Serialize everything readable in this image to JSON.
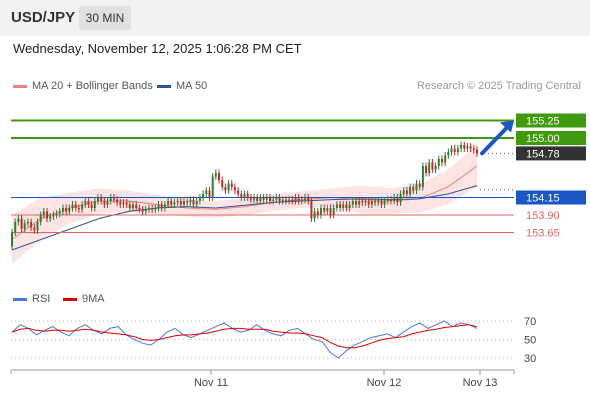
{
  "header": {
    "symbol": "USD/JPY",
    "timeframe": "30 MIN",
    "datetime": "Wednesday, November 12, 2025 1:06:28 PM CET",
    "copyright": "Research © 2025 Trading Central"
  },
  "legend": {
    "price": [
      {
        "label": "MA 20 + Bollinger Bands",
        "color": "#f08080"
      },
      {
        "label": "MA 50",
        "color": "#2f5597"
      }
    ],
    "rsi": [
      {
        "label": "RSI",
        "color": "#4f74e3"
      },
      {
        "label": "9MA",
        "color": "#e00000"
      }
    ]
  },
  "colors": {
    "candle_up": "#2e7d32",
    "candle_down": "#c62828",
    "resistance": "#3e9a0a",
    "pivot": "#1a56c4",
    "support": "#e06666",
    "last_price": "#333333",
    "arrow": "#1a56c4"
  },
  "chart_data": [
    {
      "type": "candlestick",
      "title": "USD/JPY 30 MIN",
      "ylim": [
        152.9,
        155.6
      ],
      "x_ticks": [
        "Nov 11",
        "Nov 12",
        "Nov 13"
      ],
      "close": [
        153.65,
        153.8,
        153.85,
        153.7,
        153.78,
        153.8,
        153.72,
        153.68,
        153.8,
        153.9,
        153.95,
        153.85,
        153.88,
        153.9,
        153.92,
        153.95,
        154.0,
        153.95,
        154.0,
        154.05,
        154.0,
        153.98,
        154.05,
        154.1,
        154.05,
        154.0,
        154.1,
        154.15,
        154.1,
        154.05,
        154.1,
        154.15,
        154.12,
        154.08,
        154.05,
        154.08,
        154.05,
        154.0,
        154.05,
        154.0,
        153.98,
        153.95,
        153.98,
        154.0,
        153.98,
        154.0,
        154.05,
        154.0,
        154.05,
        154.1,
        154.05,
        154.08,
        154.1,
        154.05,
        154.1,
        154.08,
        154.12,
        154.05,
        154.1,
        154.15,
        154.2,
        154.25,
        154.15,
        154.45,
        154.5,
        154.4,
        154.3,
        154.25,
        154.35,
        154.3,
        154.25,
        154.2,
        154.15,
        154.2,
        154.15,
        154.12,
        154.15,
        154.1,
        154.15,
        154.12,
        154.15,
        154.1,
        154.12,
        154.15,
        154.1,
        154.12,
        154.1,
        154.12,
        154.1,
        154.15,
        154.1,
        154.12,
        154.15,
        154.1,
        153.85,
        153.95,
        153.9,
        154.0,
        153.95,
        154.0,
        153.9,
        154.0,
        154.05,
        154.0,
        154.05,
        154.0,
        154.05,
        154.1,
        154.05,
        154.1,
        154.08,
        154.1,
        154.05,
        154.1,
        154.08,
        154.1,
        154.05,
        154.1,
        154.12,
        154.1,
        154.15,
        154.08,
        154.2,
        154.25,
        154.2,
        154.3,
        154.25,
        154.35,
        154.3,
        154.6,
        154.5,
        154.65,
        154.55,
        154.6,
        154.7,
        154.65,
        154.75,
        154.8,
        154.85,
        154.8,
        154.85,
        154.9,
        154.85,
        154.88,
        154.85,
        154.83,
        154.78
      ],
      "series": [
        {
          "name": "MA 20",
          "values": [
            153.55,
            153.85,
            154.0,
            154.1,
            154.1,
            154.05,
            154.0,
            153.98,
            154.02,
            154.08,
            154.12,
            154.15,
            154.12,
            154.1,
            154.13,
            154.3,
            154.6
          ]
        },
        {
          "name": "MA 50",
          "values": [
            153.4,
            153.55,
            153.7,
            153.85,
            153.95,
            154.0,
            154.02,
            154.0,
            154.04,
            154.08,
            154.1,
            154.12,
            154.13,
            154.12,
            154.13,
            154.2,
            154.32
          ]
        }
      ],
      "levels": [
        {
          "label": "155.25",
          "value": 155.25,
          "kind": "resistance"
        },
        {
          "label": "155.00",
          "value": 155.0,
          "kind": "resistance"
        },
        {
          "label": "154.78",
          "value": 154.78,
          "kind": "last"
        },
        {
          "label": "154.15",
          "value": 154.15,
          "kind": "pivot"
        },
        {
          "label": "153.90",
          "value": 153.9,
          "kind": "support"
        },
        {
          "label": "153.65",
          "value": 153.65,
          "kind": "support"
        }
      ]
    },
    {
      "type": "line",
      "title": "RSI",
      "ylim": [
        20,
        80
      ],
      "y_ticks": [
        70,
        50,
        30
      ],
      "series": [
        {
          "name": "RSI",
          "values": [
            58,
            66,
            62,
            55,
            60,
            64,
            58,
            54,
            62,
            66,
            60,
            56,
            62,
            64,
            55,
            50,
            46,
            44,
            50,
            58,
            62,
            55,
            52,
            56,
            60,
            64,
            68,
            62,
            58,
            60,
            66,
            60,
            56,
            54,
            60,
            62,
            56,
            50,
            48,
            36,
            30,
            38,
            44,
            48,
            52,
            54,
            56,
            52,
            58,
            64,
            68,
            62,
            66,
            70,
            64,
            68,
            66,
            62
          ]
        },
        {
          "name": "9MA",
          "values": [
            58,
            61,
            62,
            60,
            59,
            60,
            60,
            59,
            60,
            61,
            60,
            58,
            57,
            56,
            55,
            53,
            50,
            49,
            50,
            52,
            54,
            55,
            55,
            56,
            57,
            59,
            61,
            62,
            62,
            61,
            61,
            61,
            59,
            58,
            57,
            57,
            56,
            54,
            52,
            47,
            43,
            41,
            41,
            43,
            46,
            49,
            51,
            52,
            53,
            56,
            58,
            60,
            61,
            63,
            64,
            65,
            66,
            64
          ]
        }
      ]
    }
  ]
}
